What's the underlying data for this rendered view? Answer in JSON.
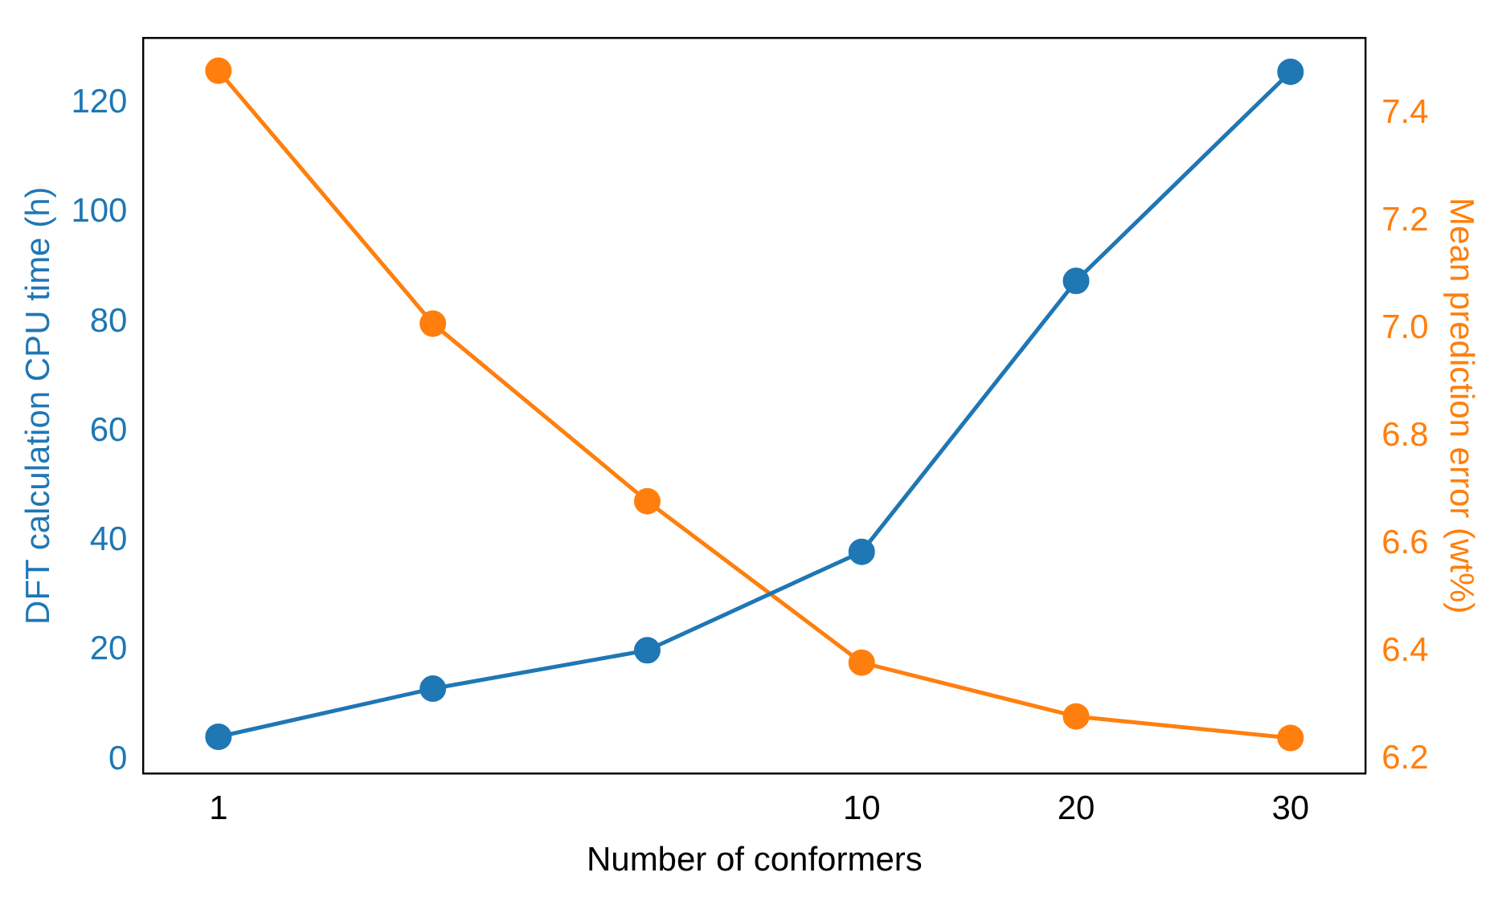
{
  "chart_data": {
    "type": "line",
    "xlabel": "Number of conformers",
    "ylabel": "DFT calculation CPU time (h)",
    "y2label": "Mean prediction error (wt%)",
    "categories": [
      "1",
      null,
      null,
      "10",
      "20",
      "30"
    ],
    "ylim": [
      -2.5,
      131.9
    ],
    "yticks": [
      0,
      20,
      40,
      60,
      80,
      100,
      120
    ],
    "y2lim": [
      6.174,
      7.541
    ],
    "y2ticks": [
      6.2,
      6.4,
      6.6,
      6.8,
      {
        "value": 7.0,
        "label": "7.0"
      },
      7.2,
      7.4
    ],
    "series": [
      {
        "color": "#1f77b4",
        "values": [
          4.2,
          13,
          20,
          38,
          87.5,
          125.7
        ]
      },
      {
        "color": "#ff7f0e",
        "axis": "y2",
        "values": [
          7.48,
          7.01,
          6.68,
          6.38,
          6.28,
          6.24
        ]
      }
    ],
    "marker": "circle",
    "line_style": "solid",
    "grid": false,
    "legend": false
  }
}
